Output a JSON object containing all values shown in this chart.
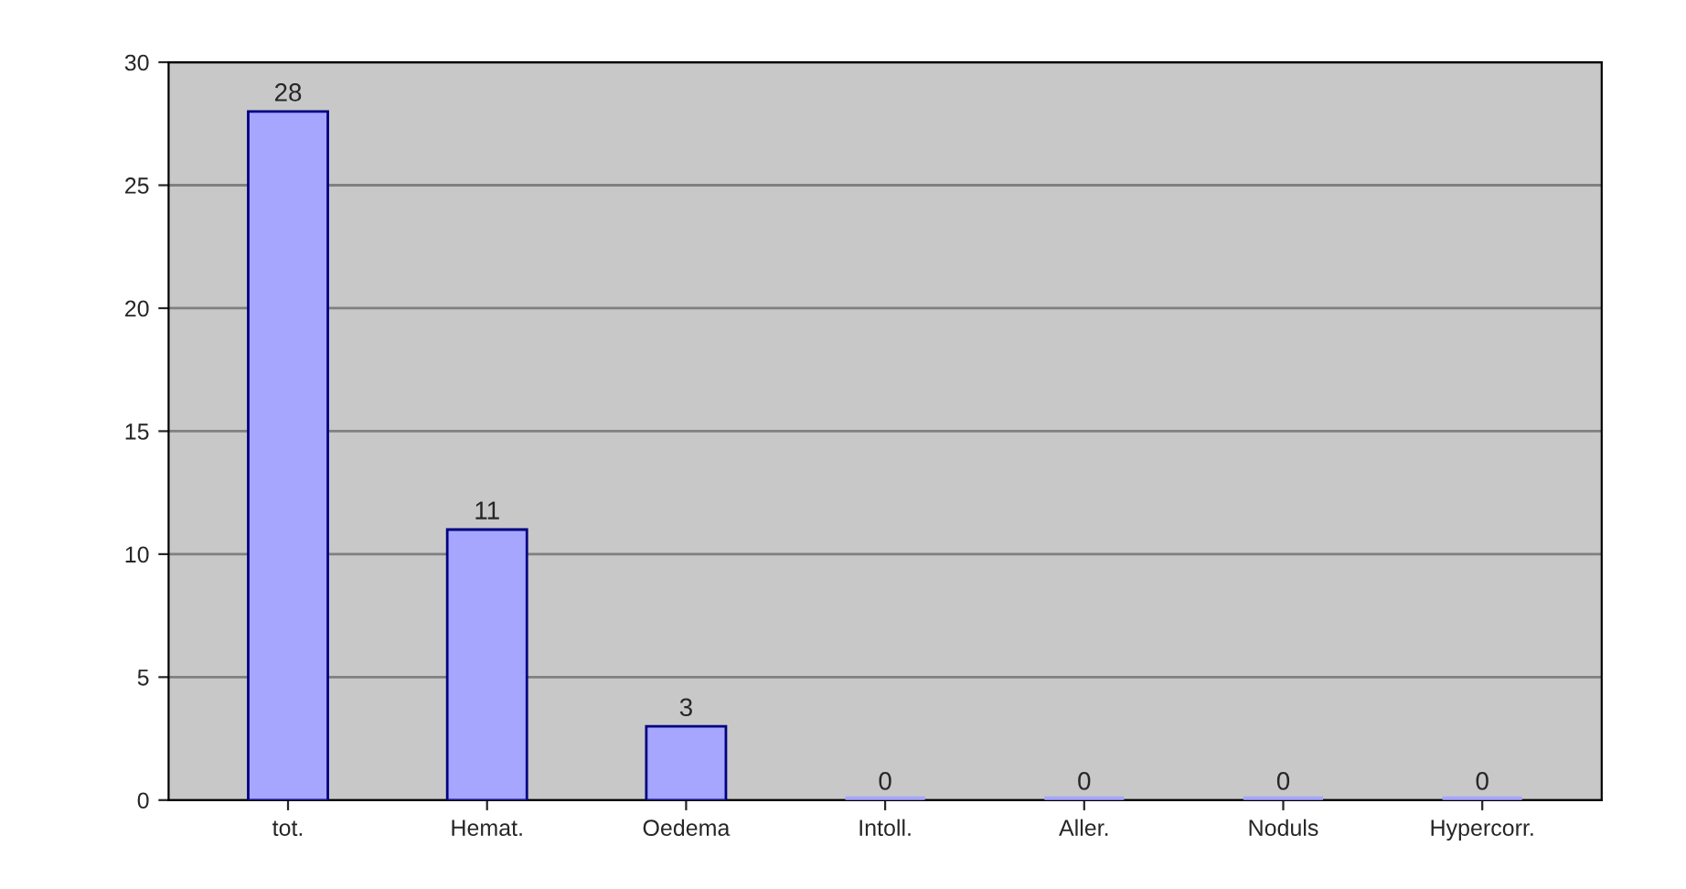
{
  "chart_data": {
    "type": "bar",
    "categories": [
      "tot.",
      "Hemat.",
      "Oedema",
      "Intoll.",
      "Aller.",
      "Noduls",
      "Hypercorr."
    ],
    "values": [
      28,
      11,
      3,
      0,
      0,
      0,
      0
    ],
    "color": "#a6a6ff",
    "ylim": [
      0,
      30
    ],
    "yticks": [
      0,
      5,
      10,
      15,
      20,
      25,
      30
    ],
    "grid": "y",
    "data_labels": true
  }
}
